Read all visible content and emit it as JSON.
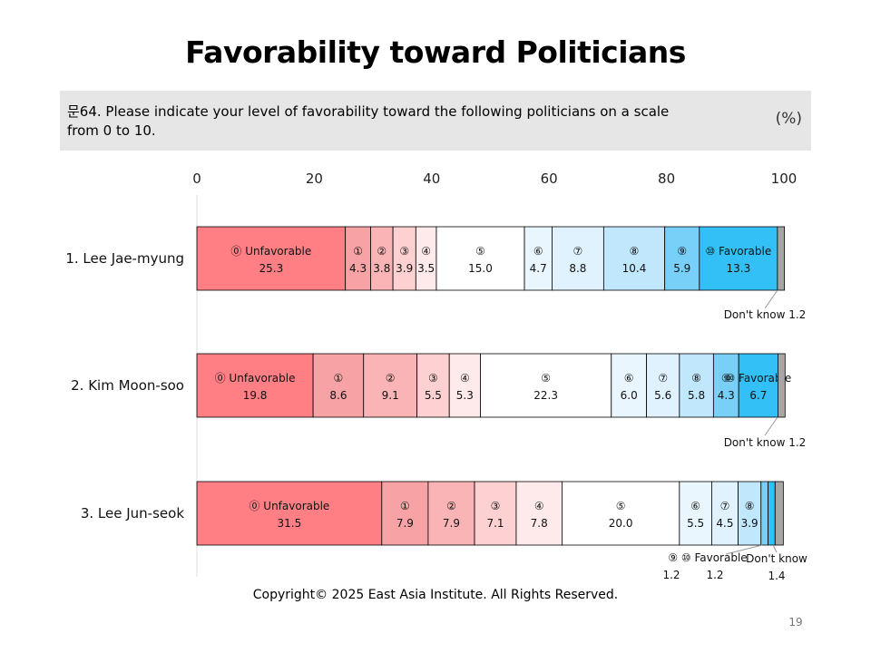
{
  "slide": {
    "title": "Favorability toward Politicians",
    "question": "문64. Please indicate your level of favorability toward the following politicians on a scale from 0 to 10.",
    "unit": "(%)",
    "copyright": "Copyright© 2025 East Asia Institute. All Rights Reserved.",
    "page_number": "19"
  },
  "colors": {
    "segments": [
      "#ff7f85",
      "#f7a3a5",
      "#fab4b6",
      "#fdd0d1",
      "#feeaeb",
      "#ffffff",
      "#eaf6fd",
      "#dff2fd",
      "#c1e7fc",
      "#78d0f9",
      "#33c0f6",
      "#a6a6a6"
    ]
  },
  "chart_data": {
    "type": "bar",
    "orientation": "horizontal",
    "stacked": true,
    "xlim": [
      0,
      100
    ],
    "x_ticks": [
      "0",
      "20",
      "40",
      "60",
      "80",
      "100"
    ],
    "categories": [
      "1. Lee Jae-myung",
      "2. Kim Moon-soo",
      "3. Lee Jun-seok"
    ],
    "series": [
      {
        "name": "⓪ Unfavorable",
        "values": [
          25.3,
          19.8,
          31.5
        ]
      },
      {
        "name": "①",
        "values": [
          4.3,
          8.6,
          7.9
        ]
      },
      {
        "name": "②",
        "values": [
          3.8,
          9.1,
          7.9
        ]
      },
      {
        "name": "③",
        "values": [
          3.9,
          5.5,
          7.1
        ]
      },
      {
        "name": "④",
        "values": [
          3.5,
          5.3,
          7.8
        ]
      },
      {
        "name": "⑤",
        "values": [
          15.0,
          22.3,
          20.0
        ]
      },
      {
        "name": "⑥",
        "values": [
          4.7,
          6.0,
          5.5
        ]
      },
      {
        "name": "⑦",
        "values": [
          8.8,
          5.6,
          4.5
        ]
      },
      {
        "name": "⑧",
        "values": [
          10.4,
          5.8,
          3.9
        ]
      },
      {
        "name": "⑨",
        "values": [
          5.9,
          4.3,
          1.2
        ]
      },
      {
        "name": "⑩ Favorable",
        "values": [
          13.3,
          6.7,
          1.2
        ]
      },
      {
        "name": "Don't know",
        "values": [
          1.2,
          1.2,
          1.4
        ]
      }
    ],
    "value_labels": [
      [
        "25.3",
        "4.3",
        "3.8",
        "3.9",
        "3.5",
        "15.0",
        "4.7",
        "8.8",
        "10.4",
        "5.9",
        "13.3",
        "1.2"
      ],
      [
        "19.8",
        "8.6",
        "9.1",
        "5.5",
        "5.3",
        "22.3",
        "6.0",
        "5.6",
        "5.8",
        "4.3",
        "6.7",
        "1.2"
      ],
      [
        "31.5",
        "7.9",
        "7.9",
        "7.1",
        "7.8",
        "20.0",
        "5.5",
        "4.5",
        "3.9",
        "1.2",
        "1.2",
        "1.4"
      ]
    ],
    "callouts": [
      {
        "text": "Don't know 1.2"
      },
      {
        "text": "Don't know 1.2"
      },
      {
        "text": "⑨ ⑩ Favorable",
        "values": [
          "1.2",
          "1.2"
        ]
      },
      {
        "text": "Don't know",
        "value": "1.4"
      }
    ]
  }
}
